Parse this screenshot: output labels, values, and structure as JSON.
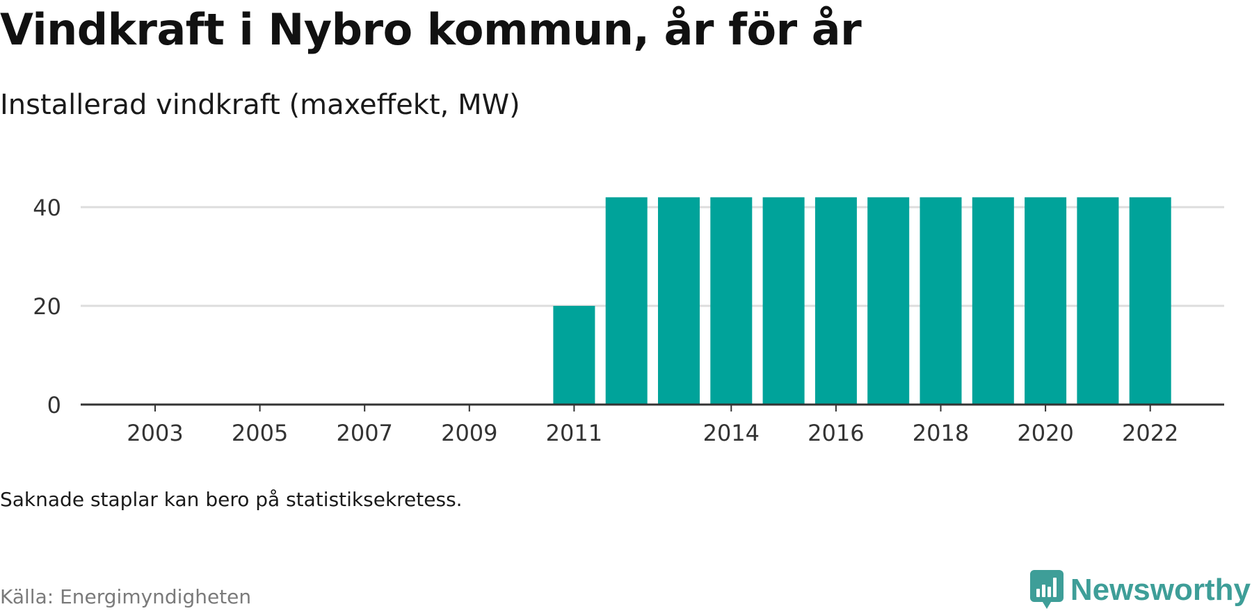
{
  "header": {
    "title": "Vindkraft i Nybro kommun, år för år",
    "subtitle": "Installerad vindkraft (maxeffekt, MW)"
  },
  "footer": {
    "note": "Saknade staplar kan bero på statistiksekretess.",
    "source": "Källa: Energimyndigheten",
    "brand": "Newsworthy"
  },
  "colors": {
    "bar": "#00a39a",
    "grid": "#dddddd",
    "axis": "#333333",
    "brand": "#3e9e98"
  },
  "chart_data": {
    "type": "bar",
    "title": "Vindkraft i Nybro kommun, år för år",
    "subtitle": "Installerad vindkraft (maxeffekt, MW)",
    "xlabel": "",
    "ylabel": "",
    "x": [
      2002,
      2003,
      2004,
      2005,
      2006,
      2007,
      2008,
      2009,
      2010,
      2011,
      2012,
      2013,
      2014,
      2015,
      2016,
      2017,
      2018,
      2019,
      2020,
      2021,
      2022
    ],
    "values": [
      0,
      0,
      0,
      0,
      0,
      0,
      0,
      0,
      0,
      20,
      42,
      42,
      42,
      42,
      42,
      42,
      42,
      42,
      42,
      42,
      42
    ],
    "x_tick_labels": [
      "2003",
      "2005",
      "2007",
      "2009",
      "2011",
      "2014",
      "2016",
      "2018",
      "2020",
      "2022"
    ],
    "y_ticks": [
      0,
      20,
      40
    ],
    "ylim": [
      0,
      44
    ],
    "grid": true,
    "legend": "none"
  }
}
